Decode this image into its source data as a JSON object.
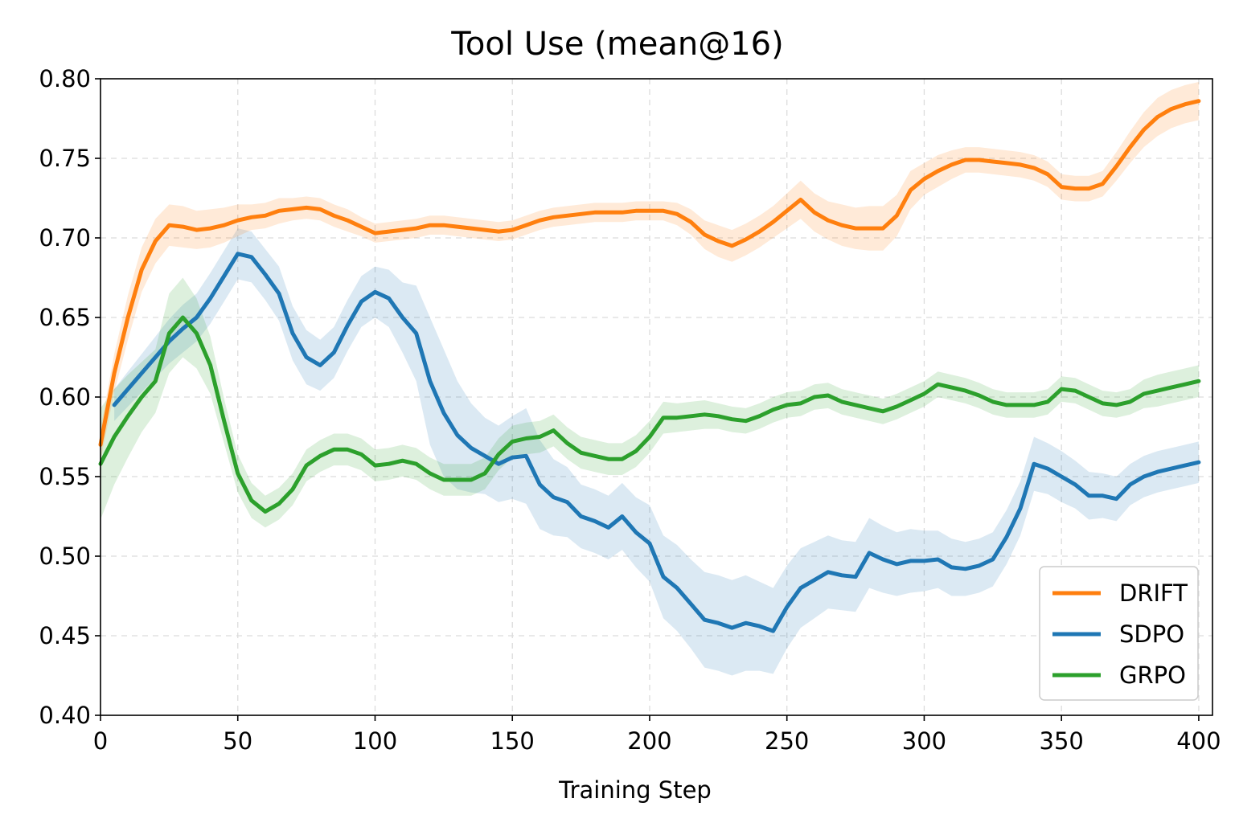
{
  "chart_data": {
    "type": "line",
    "title": "Tool Use (mean@16)",
    "xlabel": "Training Step",
    "ylabel": "",
    "xlim": [
      0,
      405
    ],
    "ylim": [
      0.4,
      0.8
    ],
    "x_ticks": [
      0,
      50,
      100,
      150,
      200,
      250,
      300,
      350,
      400
    ],
    "y_ticks": [
      0.4,
      0.45,
      0.5,
      0.55,
      0.6,
      0.65,
      0.7,
      0.75,
      0.8
    ],
    "grid": true,
    "legend_position": "lower-right",
    "series": [
      {
        "name": "DRIFT",
        "color": "#ff7f0e",
        "x": [
          0,
          5,
          10,
          15,
          20,
          25,
          30,
          35,
          40,
          45,
          50,
          55,
          60,
          65,
          70,
          75,
          80,
          85,
          90,
          95,
          100,
          105,
          110,
          115,
          120,
          125,
          130,
          135,
          140,
          145,
          150,
          155,
          160,
          165,
          170,
          175,
          180,
          185,
          190,
          195,
          200,
          205,
          210,
          215,
          220,
          225,
          230,
          235,
          240,
          245,
          250,
          255,
          260,
          265,
          270,
          275,
          280,
          285,
          290,
          295,
          300,
          305,
          310,
          315,
          320,
          325,
          330,
          335,
          340,
          345,
          350,
          355,
          360,
          365,
          370,
          375,
          380,
          385,
          390,
          395,
          400
        ],
        "y": [
          0.57,
          0.615,
          0.65,
          0.68,
          0.698,
          0.708,
          0.707,
          0.705,
          0.706,
          0.708,
          0.711,
          0.713,
          0.714,
          0.717,
          0.718,
          0.719,
          0.718,
          0.714,
          0.711,
          0.707,
          0.703,
          0.704,
          0.705,
          0.706,
          0.708,
          0.708,
          0.707,
          0.706,
          0.705,
          0.704,
          0.705,
          0.708,
          0.711,
          0.713,
          0.714,
          0.715,
          0.716,
          0.716,
          0.716,
          0.717,
          0.717,
          0.717,
          0.715,
          0.71,
          0.702,
          0.698,
          0.695,
          0.699,
          0.704,
          0.71,
          0.717,
          0.724,
          0.716,
          0.711,
          0.708,
          0.706,
          0.706,
          0.706,
          0.714,
          0.73,
          0.737,
          0.742,
          0.746,
          0.749,
          0.749,
          0.748,
          0.747,
          0.746,
          0.744,
          0.74,
          0.732,
          0.731,
          0.731,
          0.734,
          0.745,
          0.757,
          0.768,
          0.776,
          0.781,
          0.784,
          0.786
        ],
        "band": [
          0.01,
          0.012,
          0.014,
          0.014,
          0.014,
          0.013,
          0.013,
          0.012,
          0.012,
          0.011,
          0.01,
          0.008,
          0.008,
          0.008,
          0.007,
          0.007,
          0.007,
          0.007,
          0.007,
          0.006,
          0.006,
          0.006,
          0.006,
          0.006,
          0.006,
          0.006,
          0.006,
          0.006,
          0.006,
          0.006,
          0.006,
          0.006,
          0.006,
          0.006,
          0.006,
          0.006,
          0.006,
          0.006,
          0.006,
          0.006,
          0.006,
          0.006,
          0.007,
          0.008,
          0.009,
          0.01,
          0.01,
          0.01,
          0.01,
          0.01,
          0.011,
          0.012,
          0.012,
          0.012,
          0.013,
          0.013,
          0.014,
          0.014,
          0.013,
          0.012,
          0.01,
          0.01,
          0.009,
          0.008,
          0.008,
          0.008,
          0.008,
          0.008,
          0.008,
          0.008,
          0.008,
          0.008,
          0.008,
          0.008,
          0.009,
          0.01,
          0.011,
          0.012,
          0.012,
          0.012,
          0.012
        ]
      },
      {
        "name": "SDPO",
        "color": "#1f77b4",
        "x": [
          5,
          10,
          15,
          20,
          25,
          30,
          35,
          40,
          45,
          50,
          55,
          60,
          65,
          70,
          75,
          80,
          85,
          90,
          95,
          100,
          105,
          110,
          115,
          120,
          125,
          130,
          135,
          140,
          145,
          150,
          155,
          160,
          165,
          170,
          175,
          180,
          185,
          190,
          195,
          200,
          205,
          210,
          215,
          220,
          225,
          230,
          235,
          240,
          245,
          250,
          255,
          260,
          265,
          270,
          275,
          280,
          285,
          290,
          295,
          300,
          305,
          310,
          315,
          320,
          325,
          330,
          335,
          340,
          345,
          350,
          355,
          360,
          365,
          370,
          375,
          380,
          385,
          390,
          395,
          400
        ],
        "y": [
          0.595,
          0.605,
          0.615,
          0.625,
          0.635,
          0.643,
          0.65,
          0.662,
          0.676,
          0.69,
          0.688,
          0.677,
          0.665,
          0.64,
          0.625,
          0.62,
          0.628,
          0.645,
          0.66,
          0.666,
          0.662,
          0.65,
          0.64,
          0.61,
          0.59,
          0.576,
          0.568,
          0.563,
          0.558,
          0.562,
          0.563,
          0.545,
          0.537,
          0.534,
          0.525,
          0.522,
          0.518,
          0.525,
          0.515,
          0.508,
          0.487,
          0.48,
          0.47,
          0.46,
          0.458,
          0.455,
          0.458,
          0.456,
          0.453,
          0.468,
          0.48,
          0.485,
          0.49,
          0.488,
          0.487,
          0.502,
          0.498,
          0.495,
          0.497,
          0.497,
          0.498,
          0.493,
          0.492,
          0.494,
          0.498,
          0.512,
          0.53,
          0.558,
          0.555,
          0.55,
          0.545,
          0.538,
          0.538,
          0.536,
          0.545,
          0.55,
          0.553,
          0.555,
          0.557,
          0.559
        ],
        "band": [
          0.01,
          0.011,
          0.012,
          0.013,
          0.014,
          0.015,
          0.015,
          0.016,
          0.016,
          0.016,
          0.016,
          0.016,
          0.017,
          0.017,
          0.017,
          0.016,
          0.016,
          0.016,
          0.016,
          0.016,
          0.018,
          0.022,
          0.03,
          0.04,
          0.04,
          0.034,
          0.028,
          0.024,
          0.024,
          0.026,
          0.03,
          0.028,
          0.024,
          0.022,
          0.02,
          0.02,
          0.02,
          0.021,
          0.022,
          0.024,
          0.026,
          0.027,
          0.028,
          0.03,
          0.03,
          0.03,
          0.03,
          0.028,
          0.027,
          0.026,
          0.025,
          0.024,
          0.023,
          0.022,
          0.022,
          0.022,
          0.021,
          0.02,
          0.02,
          0.019,
          0.018,
          0.018,
          0.017,
          0.017,
          0.017,
          0.017,
          0.017,
          0.017,
          0.016,
          0.016,
          0.015,
          0.015,
          0.014,
          0.014,
          0.013,
          0.013,
          0.013,
          0.013,
          0.013,
          0.013
        ]
      },
      {
        "name": "GRPO",
        "color": "#2ca02c",
        "x": [
          0,
          5,
          10,
          15,
          20,
          25,
          30,
          35,
          40,
          45,
          50,
          55,
          60,
          65,
          70,
          75,
          80,
          85,
          90,
          95,
          100,
          105,
          110,
          115,
          120,
          125,
          130,
          135,
          140,
          145,
          150,
          155,
          160,
          165,
          170,
          175,
          180,
          185,
          190,
          195,
          200,
          205,
          210,
          215,
          220,
          225,
          230,
          235,
          240,
          245,
          250,
          255,
          260,
          265,
          270,
          275,
          280,
          285,
          290,
          295,
          300,
          305,
          310,
          315,
          320,
          325,
          330,
          335,
          340,
          345,
          350,
          355,
          360,
          365,
          370,
          375,
          380,
          385,
          390,
          395,
          400
        ],
        "y": [
          0.558,
          0.575,
          0.588,
          0.6,
          0.61,
          0.64,
          0.65,
          0.64,
          0.62,
          0.585,
          0.552,
          0.535,
          0.528,
          0.533,
          0.542,
          0.557,
          0.563,
          0.567,
          0.567,
          0.564,
          0.557,
          0.558,
          0.56,
          0.558,
          0.552,
          0.548,
          0.548,
          0.548,
          0.552,
          0.564,
          0.572,
          0.574,
          0.575,
          0.579,
          0.571,
          0.565,
          0.563,
          0.561,
          0.561,
          0.566,
          0.575,
          0.587,
          0.587,
          0.588,
          0.589,
          0.588,
          0.586,
          0.585,
          0.588,
          0.592,
          0.595,
          0.596,
          0.6,
          0.601,
          0.597,
          0.595,
          0.593,
          0.591,
          0.594,
          0.598,
          0.602,
          0.608,
          0.606,
          0.604,
          0.601,
          0.597,
          0.595,
          0.595,
          0.595,
          0.597,
          0.605,
          0.604,
          0.6,
          0.596,
          0.595,
          0.597,
          0.602,
          0.604,
          0.606,
          0.608,
          0.61
        ],
        "band": [
          0.035,
          0.03,
          0.026,
          0.022,
          0.02,
          0.025,
          0.025,
          0.022,
          0.018,
          0.014,
          0.012,
          0.011,
          0.01,
          0.01,
          0.01,
          0.01,
          0.01,
          0.01,
          0.01,
          0.01,
          0.01,
          0.01,
          0.01,
          0.01,
          0.01,
          0.01,
          0.01,
          0.01,
          0.01,
          0.01,
          0.01,
          0.01,
          0.01,
          0.01,
          0.01,
          0.01,
          0.01,
          0.01,
          0.01,
          0.01,
          0.01,
          0.01,
          0.009,
          0.009,
          0.009,
          0.008,
          0.008,
          0.008,
          0.008,
          0.008,
          0.008,
          0.008,
          0.008,
          0.008,
          0.008,
          0.008,
          0.008,
          0.008,
          0.008,
          0.008,
          0.008,
          0.008,
          0.008,
          0.008,
          0.008,
          0.008,
          0.008,
          0.008,
          0.008,
          0.008,
          0.008,
          0.008,
          0.008,
          0.008,
          0.008,
          0.008,
          0.009,
          0.01,
          0.01,
          0.01,
          0.01
        ]
      }
    ]
  }
}
